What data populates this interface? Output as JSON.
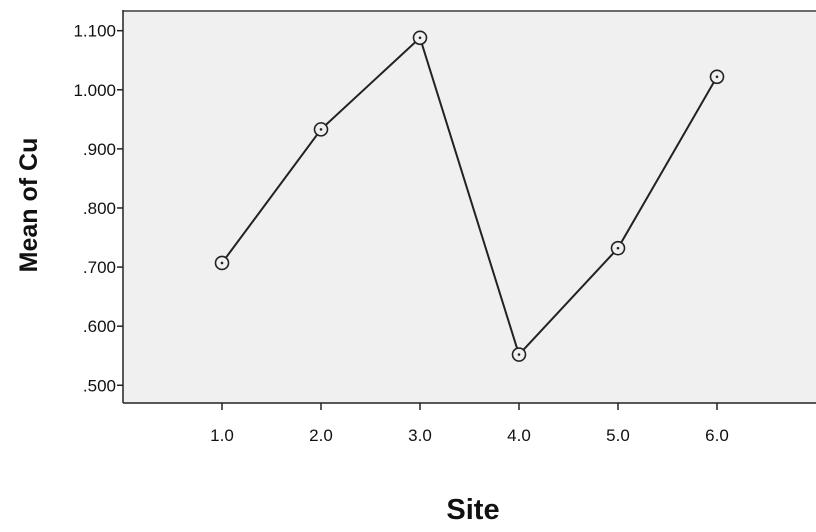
{
  "chart_data": {
    "type": "line",
    "xlabel": "Site",
    "ylabel": "Mean of Cu",
    "x": [
      1.0,
      2.0,
      3.0,
      4.0,
      5.0,
      6.0
    ],
    "x_tick_labels": [
      "1.0",
      "2.0",
      "3.0",
      "4.0",
      "5.0",
      "6.0"
    ],
    "series": [
      {
        "values": [
          0.707,
          0.933,
          1.088,
          0.552,
          0.732,
          1.022
        ]
      }
    ],
    "y_ticks": [
      0.5,
      0.6,
      0.7,
      0.8,
      0.9,
      1.0,
      1.1
    ],
    "y_tick_labels": [
      ".500",
      ".600",
      ".700",
      ".800",
      ".900",
      "1.000",
      "1.100"
    ],
    "ylim": [
      0.47,
      1.135
    ],
    "xlim": [
      0.0,
      7.0
    ],
    "marker": "open-circle-with-dot",
    "grid": false,
    "colors": {
      "plot_background": "#f0f0f0",
      "line": "#222222",
      "marker": "#222222"
    }
  }
}
